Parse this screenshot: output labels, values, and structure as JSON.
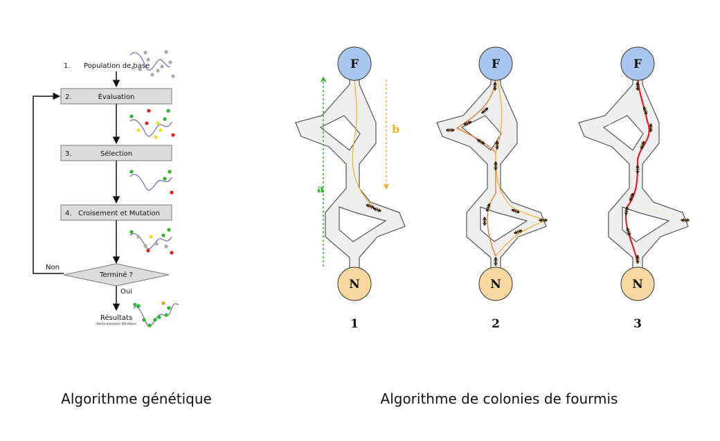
{
  "genetic": {
    "caption": "Algorithme génétique",
    "step1": {
      "num": "1.",
      "label": "Population de base"
    },
    "step2": {
      "num": "2.",
      "label": "Évaluation"
    },
    "step3": {
      "num": "3.",
      "label": "Sélection"
    },
    "step4": {
      "num": "4.",
      "label": "Croisement et Mutation"
    },
    "decision": "Terminé ?",
    "no_label": "Non",
    "yes_label": "Oui",
    "result": "Résultats",
    "result_sub": "Après plusieurs itérations"
  },
  "ants": {
    "caption": "Algorithme de colonies de fourmis",
    "food_label": "F",
    "nest_label": "N",
    "panel_numbers": [
      "1",
      "2",
      "3"
    ],
    "arrow_a": "a",
    "arrow_b": "b"
  },
  "colors": {
    "box_fill": "#dcdcdc",
    "food_fill": "#a9c6f0",
    "nest_fill": "#f7d8a0",
    "green": "#22bb22",
    "orange": "#f0b020",
    "red_trail": "#e02020",
    "path_fill": "#eeeeee",
    "curve": "#7a74b8"
  }
}
